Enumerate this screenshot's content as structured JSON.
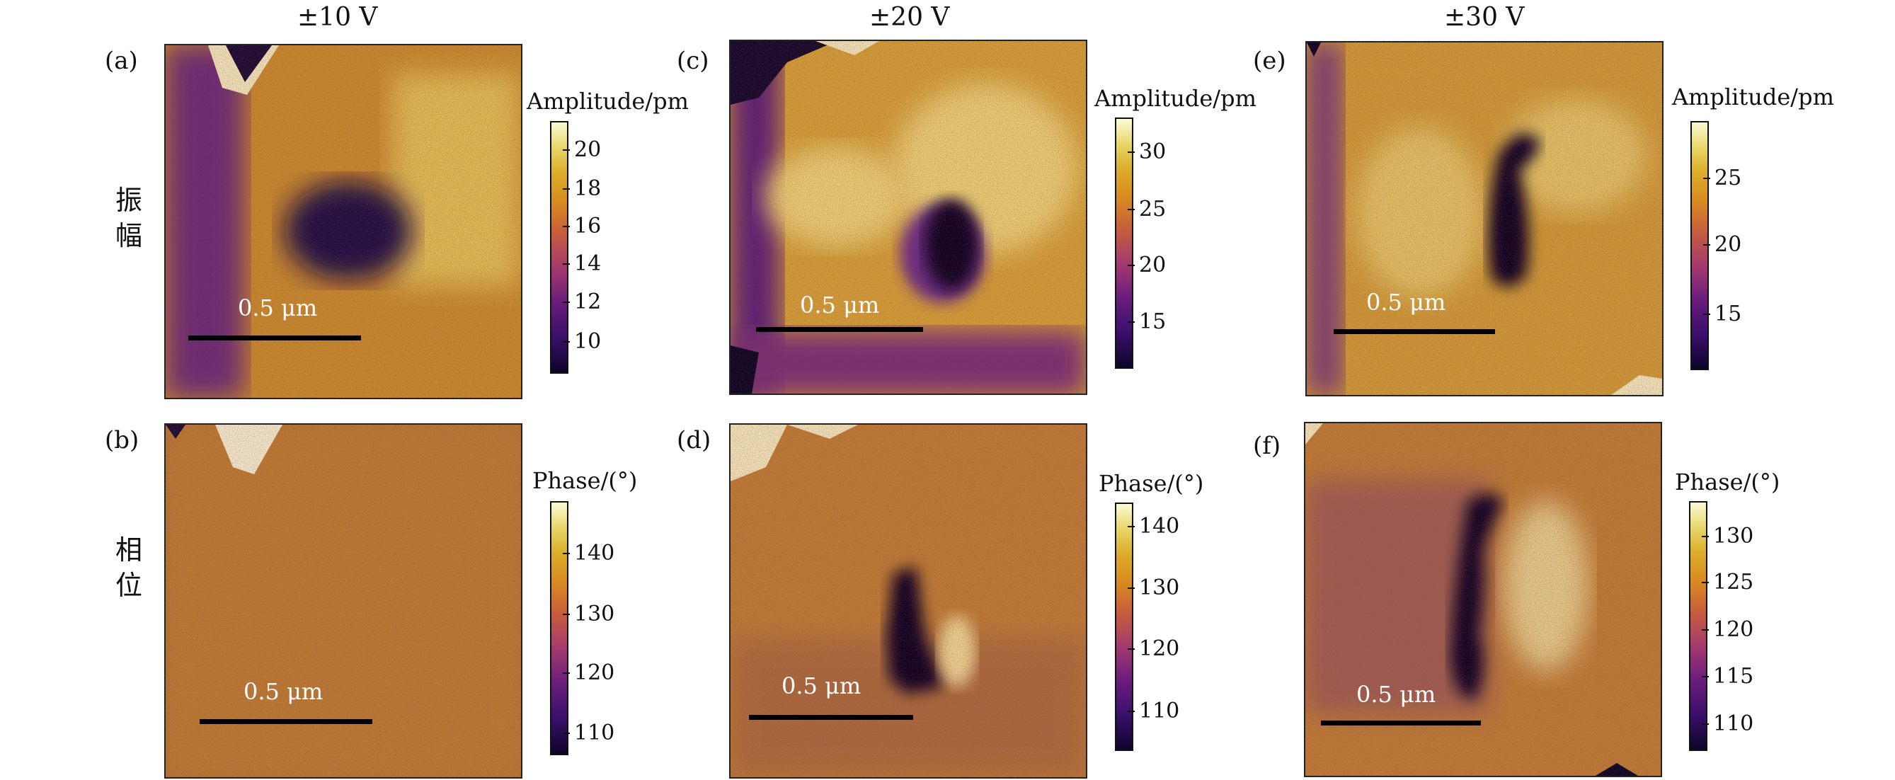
{
  "columns": [
    {
      "title": "±10 V"
    },
    {
      "title": "±20 V"
    },
    {
      "title": "±30 V"
    }
  ],
  "row_labels": {
    "amplitude": "振幅",
    "phase": "相位"
  },
  "panels": [
    {
      "label": "(a)",
      "scale": "0.5 μm",
      "colorbar_title": "Amplitude/pm",
      "ticks": [
        "20",
        "18",
        "16",
        "14",
        "12",
        "10"
      ]
    },
    {
      "label": "(b)",
      "scale": "0.5 μm",
      "colorbar_title": "Phase/(°)",
      "ticks": [
        "140",
        "130",
        "120",
        "110"
      ]
    },
    {
      "label": "(c)",
      "scale": "0.5 μm",
      "colorbar_title": "Amplitude/pm",
      "ticks": [
        "30",
        "25",
        "20",
        "15"
      ]
    },
    {
      "label": "(d)",
      "scale": "0.5 μm",
      "colorbar_title": "Phase/(°)",
      "ticks": [
        "140",
        "130",
        "120",
        "110"
      ]
    },
    {
      "label": "(e)",
      "scale": "0.5 μm",
      "colorbar_title": "Amplitude/pm",
      "ticks": [
        "25",
        "20",
        "15"
      ]
    },
    {
      "label": "(f)",
      "scale": "0.5 μm",
      "colorbar_title": "Phase/(°)",
      "ticks": [
        "130",
        "125",
        "120",
        "115",
        "110"
      ]
    }
  ]
}
